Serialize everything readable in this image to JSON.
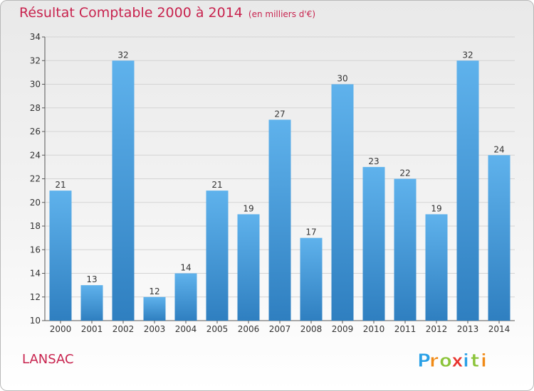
{
  "header": {
    "title": "Résultat Comptable 2000 à 2014",
    "unit": "(en milliers d'€)"
  },
  "commune": "LANSAC",
  "logo": {
    "letters": [
      "P",
      "r",
      "o",
      "x",
      "i",
      "t",
      "i"
    ],
    "colors": [
      "#2aa0e6",
      "#f08a16",
      "#8cc43b",
      "#e8342e",
      "#2aa0e6",
      "#8cc43b",
      "#f08a16"
    ]
  },
  "colors": {
    "title": "#c8234e",
    "bar_light": "#5fb2ec",
    "bar_dark": "#2f7fc0"
  },
  "chart_data": {
    "type": "bar",
    "title": "Résultat Comptable 2000 à 2014",
    "subtitle": "(en milliers d'€)",
    "xlabel": "",
    "ylabel": "",
    "categories": [
      "2000",
      "2001",
      "2002",
      "2003",
      "2004",
      "2005",
      "2006",
      "2007",
      "2008",
      "2009",
      "2010",
      "2011",
      "2012",
      "2013",
      "2014"
    ],
    "values": [
      21,
      13,
      32,
      12,
      14,
      21,
      19,
      27,
      17,
      30,
      23,
      22,
      19,
      32,
      24
    ],
    "ylim": [
      10,
      34
    ],
    "yticks": [
      10,
      12,
      14,
      16,
      18,
      20,
      22,
      24,
      26,
      28,
      30,
      32,
      34
    ],
    "grid": true,
    "data_labels": true
  }
}
